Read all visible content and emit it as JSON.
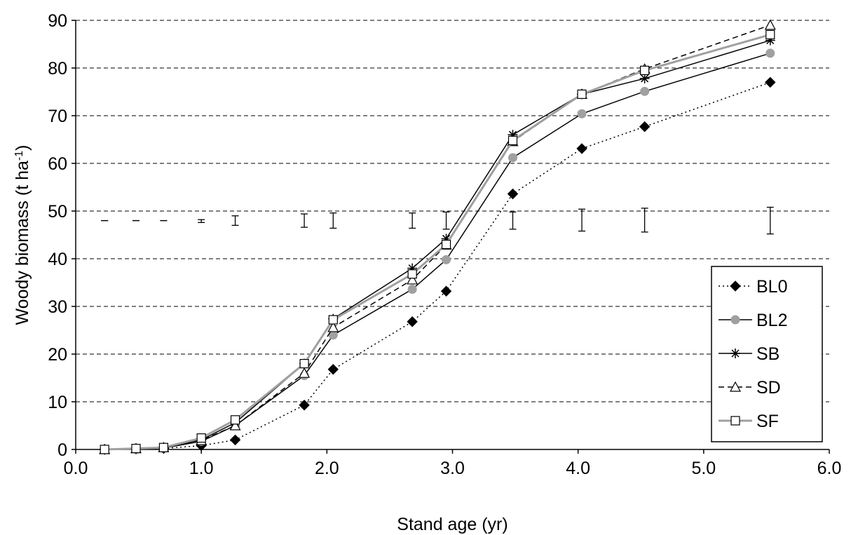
{
  "chart_data": {
    "type": "line",
    "xlabel": "Stand age (yr)",
    "ylabel_main": "Woody biomass (t ha",
    "ylabel_sup": "-1",
    "ylabel_close": ")",
    "xlim": [
      0,
      6
    ],
    "ylim": [
      0,
      90
    ],
    "x_ticks": [
      0,
      1,
      2,
      3,
      4,
      5,
      6
    ],
    "x_tick_labels": [
      "0.0",
      "1.0",
      "2.0",
      "3.0",
      "4.0",
      "5.0",
      "6.0"
    ],
    "y_ticks": [
      0,
      10,
      20,
      30,
      40,
      50,
      60,
      70,
      80,
      90
    ],
    "y_tick_labels": [
      "0",
      "10",
      "20",
      "30",
      "40",
      "50",
      "60",
      "70",
      "80",
      "90"
    ],
    "grid": "horizontal dashed",
    "legend_position": "right-lower",
    "x": [
      0.23,
      0.48,
      0.7,
      1.0,
      1.27,
      1.82,
      2.05,
      2.68,
      2.95,
      3.48,
      4.03,
      4.53,
      5.53
    ],
    "series": [
      {
        "name": "BL0",
        "marker": "diamond",
        "line": "dotted",
        "color": "#000000",
        "values": [
          0.0,
          0.1,
          0.2,
          0.8,
          2.0,
          9.3,
          16.8,
          26.8,
          33.2,
          53.6,
          63.1,
          67.7,
          77.0
        ]
      },
      {
        "name": "BL2",
        "marker": "circle",
        "line": "solid",
        "color": "#000000",
        "marker_color": "#a0a0a0",
        "values": [
          0.0,
          0.1,
          0.3,
          1.7,
          5.0,
          15.5,
          24.0,
          33.6,
          39.8,
          61.2,
          70.4,
          75.1,
          83.1
        ]
      },
      {
        "name": "SB",
        "marker": "star",
        "line": "solid",
        "color": "#000000",
        "values": [
          0.0,
          0.2,
          0.4,
          2.0,
          5.6,
          18.0,
          27.4,
          38.0,
          44.2,
          66.0,
          74.5,
          77.8,
          85.8
        ]
      },
      {
        "name": "SD",
        "marker": "triangle",
        "line": "dashed",
        "color": "#000000",
        "values": [
          0.0,
          0.2,
          0.4,
          1.9,
          5.0,
          16.0,
          25.6,
          35.6,
          42.9,
          64.6,
          74.5,
          79.8,
          89.0
        ]
      },
      {
        "name": "SF",
        "marker": "square",
        "line": "solid",
        "color": "#a0a0a0",
        "values": [
          0.0,
          0.2,
          0.4,
          2.4,
          6.2,
          18.0,
          27.2,
          36.8,
          43.0,
          64.8,
          74.5,
          79.5,
          87.0
        ]
      }
    ],
    "error_bars": [
      {
        "x": 0.23,
        "low": 48.0,
        "high": 48.0
      },
      {
        "x": 0.48,
        "low": 48.0,
        "high": 48.0
      },
      {
        "x": 0.7,
        "low": 48.0,
        "high": 48.0
      },
      {
        "x": 1.0,
        "low": 47.6,
        "high": 48.2
      },
      {
        "x": 1.27,
        "low": 47.0,
        "high": 49.0
      },
      {
        "x": 1.82,
        "low": 46.6,
        "high": 49.4
      },
      {
        "x": 2.05,
        "low": 46.4,
        "high": 49.6
      },
      {
        "x": 2.68,
        "low": 46.4,
        "high": 49.6
      },
      {
        "x": 2.95,
        "low": 46.2,
        "high": 49.8
      },
      {
        "x": 3.48,
        "low": 46.2,
        "high": 49.8
      },
      {
        "x": 4.03,
        "low": 45.8,
        "high": 50.4
      },
      {
        "x": 4.53,
        "low": 45.6,
        "high": 50.6
      },
      {
        "x": 5.53,
        "low": 45.2,
        "high": 50.8
      }
    ]
  }
}
